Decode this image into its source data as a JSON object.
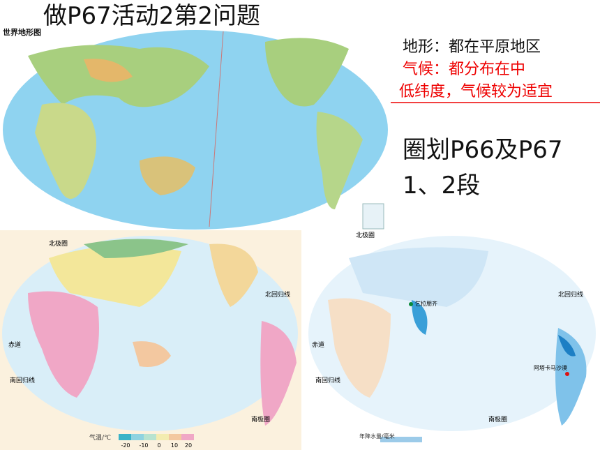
{
  "slide": {
    "title": "做P67活动2第2问题",
    "notes": [
      "地形：都在平原地区",
      "气候：都分布在中",
      "低纬度，气候较为适宜"
    ],
    "task": [
      "圈划P66及P67",
      "1、2段"
    ]
  },
  "maps": [
    {
      "title": "世界地形图"
    },
    {
      "legend_title": "气温/℃",
      "legend_ticks": [
        -20,
        -10,
        0,
        10,
        20
      ],
      "labels": [
        "北极圈",
        "北回归线",
        "赤道",
        "南回归线",
        "南极圈"
      ]
    },
    {
      "legend_title": "年降水量/毫米",
      "labels": [
        "北极圈",
        "北回归线",
        "赤道",
        "南回归线",
        "南极圈"
      ],
      "annotations": [
        "乞拉朋齐",
        "阿塔卡马沙漠"
      ]
    }
  ]
}
